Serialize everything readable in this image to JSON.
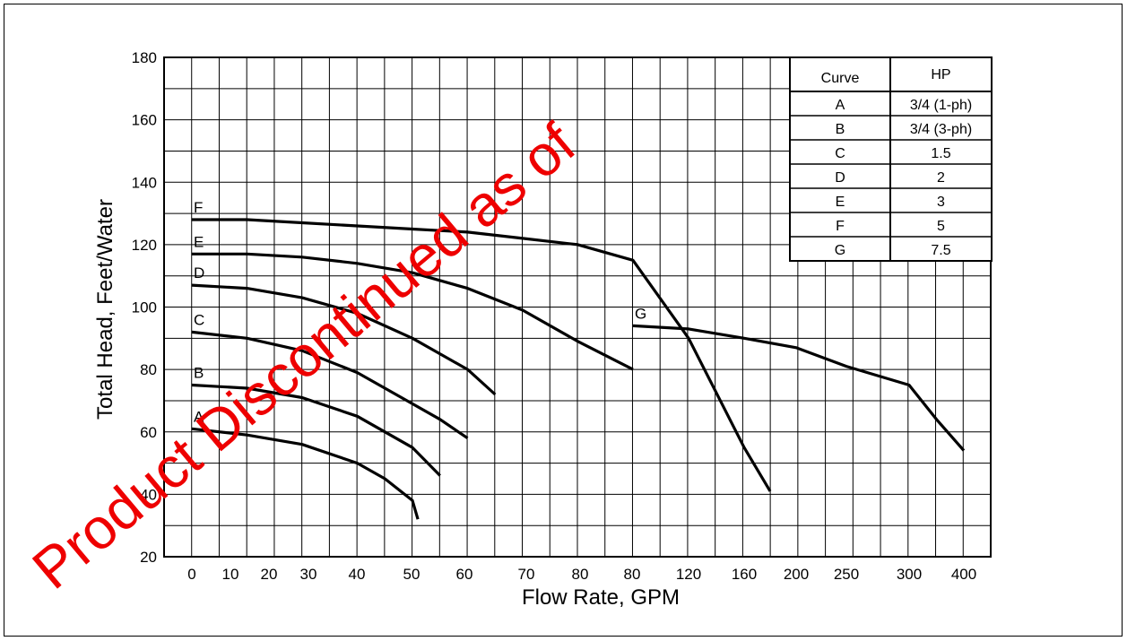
{
  "chart_data": {
    "type": "line",
    "title": "",
    "xlabel": "Flow Rate, GPM",
    "ylabel": "Total Head, Feet/Water",
    "ylim": [
      20,
      180
    ],
    "grid": true,
    "y_ticks": [
      20,
      40,
      60,
      80,
      100,
      120,
      140,
      160,
      180
    ],
    "x_tick_labels": [
      "0",
      "10",
      "20",
      "30",
      "40",
      "50",
      "60",
      "70",
      "80",
      "80",
      "120",
      "160",
      "200",
      "250",
      "300",
      "400"
    ],
    "x_axis_note": "Piecewise axis: 0–80 GPM in steps of 10 for curves A–F; 80–400 GPM in varying steps for curve G",
    "series": [
      {
        "name": "A",
        "points": [
          [
            0,
            61
          ],
          [
            10,
            59
          ],
          [
            20,
            56
          ],
          [
            30,
            50
          ],
          [
            35,
            45
          ],
          [
            40,
            38
          ],
          [
            41,
            32
          ]
        ]
      },
      {
        "name": "B",
        "points": [
          [
            0,
            75
          ],
          [
            10,
            74
          ],
          [
            20,
            71
          ],
          [
            30,
            65
          ],
          [
            40,
            55
          ],
          [
            45,
            46
          ]
        ]
      },
      {
        "name": "C",
        "points": [
          [
            0,
            92
          ],
          [
            10,
            90
          ],
          [
            20,
            86
          ],
          [
            30,
            79
          ],
          [
            40,
            69
          ],
          [
            45,
            64
          ],
          [
            50,
            58
          ]
        ]
      },
      {
        "name": "D",
        "points": [
          [
            0,
            107
          ],
          [
            10,
            106
          ],
          [
            20,
            103
          ],
          [
            30,
            98
          ],
          [
            40,
            90
          ],
          [
            50,
            80
          ],
          [
            55,
            72
          ]
        ]
      },
      {
        "name": "E",
        "points": [
          [
            0,
            117
          ],
          [
            10,
            117
          ],
          [
            20,
            116
          ],
          [
            30,
            114
          ],
          [
            40,
            111
          ],
          [
            50,
            106
          ],
          [
            60,
            99
          ],
          [
            70,
            89
          ],
          [
            80,
            80
          ]
        ]
      },
      {
        "name": "F",
        "points": [
          [
            0,
            128
          ],
          [
            10,
            128
          ],
          [
            20,
            127
          ],
          [
            30,
            126
          ],
          [
            40,
            125
          ],
          [
            50,
            124
          ],
          [
            60,
            122
          ],
          [
            70,
            120
          ],
          [
            80,
            115
          ],
          [
            120,
            90
          ],
          [
            160,
            55
          ],
          [
            180,
            41
          ]
        ]
      },
      {
        "name": "G",
        "points": [
          [
            80,
            94
          ],
          [
            120,
            93
          ],
          [
            160,
            90
          ],
          [
            200,
            87
          ],
          [
            250,
            81
          ],
          [
            300,
            75
          ],
          [
            350,
            64
          ],
          [
            400,
            54
          ]
        ]
      }
    ],
    "legend_table": {
      "headers": [
        "Curve",
        "HP"
      ],
      "rows": [
        [
          "A",
          "3/4 (1-ph)"
        ],
        [
          "B",
          "3/4 (3-ph)"
        ],
        [
          "C",
          "1.5"
        ],
        [
          "D",
          "2"
        ],
        [
          "E",
          "3"
        ],
        [
          "F",
          "5"
        ],
        [
          "G",
          "7.5"
        ]
      ],
      "placement": "top-right"
    }
  },
  "watermark": {
    "text": "Product Discontinued as of",
    "color": "#ee0000"
  }
}
